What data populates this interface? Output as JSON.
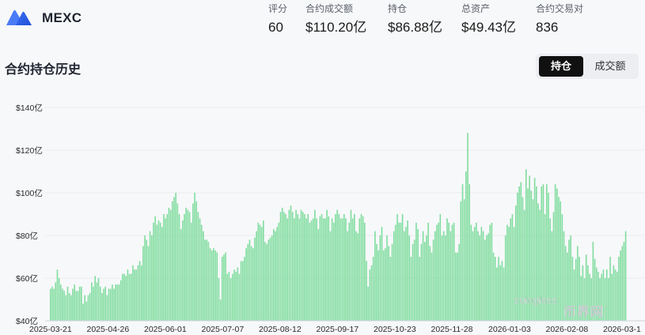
{
  "header": {
    "brand": "MEXC",
    "stats": [
      {
        "label": "评分",
        "value": "60"
      },
      {
        "label": "合约成交额",
        "value": "$110.20亿"
      },
      {
        "label": "持仓",
        "value": "$86.88亿"
      },
      {
        "label": "总资产",
        "value": "$49.43亿"
      },
      {
        "label": "合约交易对",
        "value": "836"
      }
    ]
  },
  "section": {
    "title": "合约持仓历史",
    "tabs": [
      {
        "label": "持仓",
        "active": true
      },
      {
        "label": "成交额",
        "active": false
      }
    ]
  },
  "watermarks": [
    "coinglass",
    "币界网"
  ],
  "colors": {
    "bar": "#7ddc9c",
    "bar_stroke": "#5fcf86",
    "grid": "#e9ebee",
    "text": "#1a1a1a"
  },
  "chart_data": {
    "type": "bar",
    "ylim": [
      40,
      140
    ],
    "y_ticks": [
      40,
      60,
      80,
      100,
      120,
      140
    ],
    "y_tick_labels": [
      "$40亿",
      "$60亿",
      "$80亿",
      "$100亿",
      "$120亿",
      "$140亿"
    ],
    "x_tick_labels": [
      "2025-03-21",
      "2025-04-26",
      "2025-06-01",
      "2025-07-07",
      "2025-08-12",
      "2025-09-17",
      "2025-10-23",
      "2025-11-28",
      "2026-01-03",
      "2026-02-08",
      "2026-03-1"
    ],
    "series": [
      {
        "values": [
          55,
          56,
          55,
          58,
          64,
          60,
          57,
          55,
          54,
          52,
          56,
          53,
          52,
          55,
          57,
          54,
          54,
          56,
          56,
          48,
          52,
          49,
          52,
          53,
          58,
          56,
          61,
          58,
          60,
          56,
          53,
          55,
          56,
          52,
          55,
          55,
          57,
          55,
          57,
          57,
          57,
          59,
          62,
          62,
          61,
          64,
          62,
          62,
          66,
          64,
          64,
          66,
          68,
          66,
          75,
          80,
          78,
          75,
          82,
          80,
          86,
          89,
          85,
          87,
          86,
          84,
          90,
          88,
          90,
          93,
          92,
          96,
          98,
          100,
          95,
          90,
          83,
          87,
          90,
          93,
          92,
          91,
          86,
          95,
          100,
          96,
          91,
          88,
          85,
          82,
          78,
          78,
          77,
          74,
          73,
          74,
          73,
          72,
          60,
          50,
          70,
          71,
          72,
          62,
          63,
          60,
          62,
          64,
          63,
          65,
          62,
          68,
          68,
          70,
          74,
          76,
          78,
          75,
          74,
          79,
          82,
          86,
          85,
          84,
          87,
          77,
          76,
          78,
          79,
          80,
          83,
          82,
          84,
          86,
          91,
          93,
          91,
          90,
          88,
          92,
          94,
          91,
          88,
          92,
          90,
          88,
          92,
          91,
          90,
          88,
          90,
          86,
          87,
          88,
          92,
          88,
          83,
          89,
          90,
          88,
          88,
          92,
          89,
          82,
          88,
          86,
          90,
          92,
          90,
          88,
          88,
          90,
          88,
          82,
          86,
          92,
          88,
          90,
          82,
          81,
          88,
          90,
          89,
          86,
          68,
          56,
          64,
          66,
          70,
          82,
          76,
          73,
          80,
          84,
          73,
          74,
          80,
          75,
          70,
          76,
          82,
          85,
          90,
          86,
          86,
          90,
          82,
          84,
          87,
          80,
          70,
          76,
          78,
          86,
          83,
          70,
          76,
          82,
          77,
          80,
          86,
          75,
          72,
          78,
          82,
          85,
          86,
          90,
          80,
          82,
          80,
          88,
          86,
          82,
          85,
          86,
          72,
          72,
          76,
          96,
          104,
          97,
          110,
          128,
          104,
          85,
          82,
          84,
          86,
          82,
          80,
          84,
          82,
          78,
          80,
          81,
          85,
          86,
          72,
          70,
          65,
          70,
          66,
          68,
          65,
          80,
          85,
          84,
          88,
          90,
          84,
          94,
          100,
          103,
          105,
          98,
          92,
          111,
          102,
          108,
          101,
          97,
          107,
          103,
          95,
          92,
          103,
          104,
          90,
          104,
          100,
          88,
          82,
          91,
          104,
          102,
          98,
          96,
          90,
          82,
          75,
          72,
          78,
          80,
          70,
          64,
          69,
          75,
          70,
          61,
          66,
          60,
          71,
          66,
          62,
          60,
          77,
          69,
          65,
          63,
          60,
          62,
          64,
          60,
          64,
          60,
          70,
          62,
          66,
          64,
          63,
          70,
          73,
          75,
          77,
          82
        ]
      }
    ],
    "grid": true
  }
}
